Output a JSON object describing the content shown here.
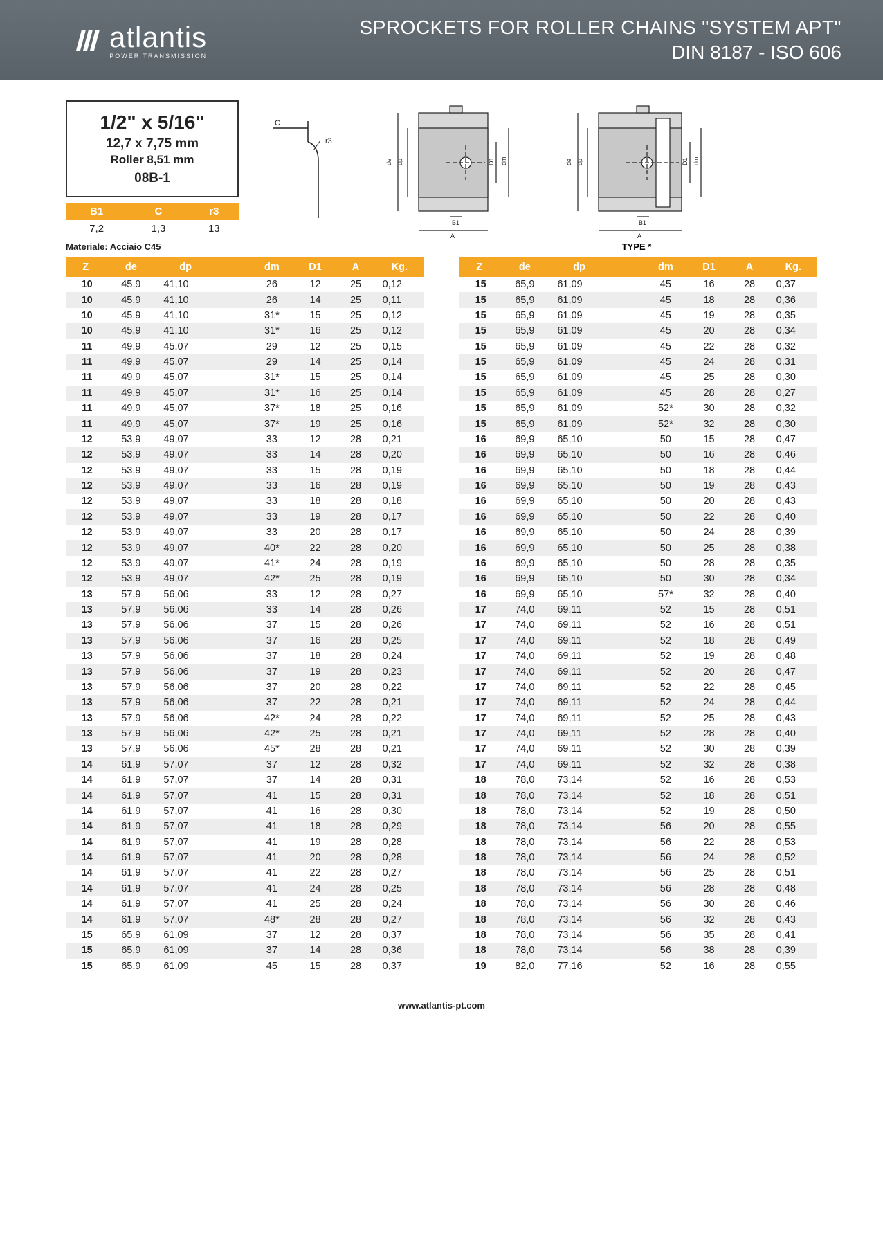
{
  "header": {
    "brand": "atlantis",
    "brand_sub": "POWER TRANSMISSION",
    "title1": "SPROCKETS FOR ROLLER CHAINS \"SYSTEM APT\"",
    "title2": "DIN 8187 - ISO 606"
  },
  "spec": {
    "main": "1/2\" x 5/16\"",
    "mm": "12,7 x 7,75 mm",
    "roller": "Roller 8,51 mm",
    "code": "08B-1"
  },
  "small_table": {
    "headers": [
      "B1",
      "C",
      "r3"
    ],
    "row": [
      "7,2",
      "1,3",
      "13"
    ]
  },
  "material": "Materiale: Acciaio C45",
  "type_label": "TYPE *",
  "footer": "www.atlantis-pt.com",
  "colors": {
    "header_bg": "#676f77",
    "accent": "#f5a623",
    "row_stripe": "#ededed",
    "text": "#222222"
  },
  "table_headers": [
    "Z",
    "de",
    "dp",
    "dm",
    "D1",
    "A",
    "Kg."
  ],
  "table_left": [
    [
      "10",
      "45,9",
      "41,10",
      "26",
      "12",
      "25",
      "0,12"
    ],
    [
      "10",
      "45,9",
      "41,10",
      "26",
      "14",
      "25",
      "0,11"
    ],
    [
      "10",
      "45,9",
      "41,10",
      "31*",
      "15",
      "25",
      "0,12"
    ],
    [
      "10",
      "45,9",
      "41,10",
      "31*",
      "16",
      "25",
      "0,12"
    ],
    [
      "11",
      "49,9",
      "45,07",
      "29",
      "12",
      "25",
      "0,15"
    ],
    [
      "11",
      "49,9",
      "45,07",
      "29",
      "14",
      "25",
      "0,14"
    ],
    [
      "11",
      "49,9",
      "45,07",
      "31*",
      "15",
      "25",
      "0,14"
    ],
    [
      "11",
      "49,9",
      "45,07",
      "31*",
      "16",
      "25",
      "0,14"
    ],
    [
      "11",
      "49,9",
      "45,07",
      "37*",
      "18",
      "25",
      "0,16"
    ],
    [
      "11",
      "49,9",
      "45,07",
      "37*",
      "19",
      "25",
      "0,16"
    ],
    [
      "12",
      "53,9",
      "49,07",
      "33",
      "12",
      "28",
      "0,21"
    ],
    [
      "12",
      "53,9",
      "49,07",
      "33",
      "14",
      "28",
      "0,20"
    ],
    [
      "12",
      "53,9",
      "49,07",
      "33",
      "15",
      "28",
      "0,19"
    ],
    [
      "12",
      "53,9",
      "49,07",
      "33",
      "16",
      "28",
      "0,19"
    ],
    [
      "12",
      "53,9",
      "49,07",
      "33",
      "18",
      "28",
      "0,18"
    ],
    [
      "12",
      "53,9",
      "49,07",
      "33",
      "19",
      "28",
      "0,17"
    ],
    [
      "12",
      "53,9",
      "49,07",
      "33",
      "20",
      "28",
      "0,17"
    ],
    [
      "12",
      "53,9",
      "49,07",
      "40*",
      "22",
      "28",
      "0,20"
    ],
    [
      "12",
      "53,9",
      "49,07",
      "41*",
      "24",
      "28",
      "0,19"
    ],
    [
      "12",
      "53,9",
      "49,07",
      "42*",
      "25",
      "28",
      "0,19"
    ],
    [
      "13",
      "57,9",
      "56,06",
      "33",
      "12",
      "28",
      "0,27"
    ],
    [
      "13",
      "57,9",
      "56,06",
      "33",
      "14",
      "28",
      "0,26"
    ],
    [
      "13",
      "57,9",
      "56,06",
      "37",
      "15",
      "28",
      "0,26"
    ],
    [
      "13",
      "57,9",
      "56,06",
      "37",
      "16",
      "28",
      "0,25"
    ],
    [
      "13",
      "57,9",
      "56,06",
      "37",
      "18",
      "28",
      "0,24"
    ],
    [
      "13",
      "57,9",
      "56,06",
      "37",
      "19",
      "28",
      "0,23"
    ],
    [
      "13",
      "57,9",
      "56,06",
      "37",
      "20",
      "28",
      "0,22"
    ],
    [
      "13",
      "57,9",
      "56,06",
      "37",
      "22",
      "28",
      "0,21"
    ],
    [
      "13",
      "57,9",
      "56,06",
      "42*",
      "24",
      "28",
      "0,22"
    ],
    [
      "13",
      "57,9",
      "56,06",
      "42*",
      "25",
      "28",
      "0,21"
    ],
    [
      "13",
      "57,9",
      "56,06",
      "45*",
      "28",
      "28",
      "0,21"
    ],
    [
      "14",
      "61,9",
      "57,07",
      "37",
      "12",
      "28",
      "0,32"
    ],
    [
      "14",
      "61,9",
      "57,07",
      "37",
      "14",
      "28",
      "0,31"
    ],
    [
      "14",
      "61,9",
      "57,07",
      "41",
      "15",
      "28",
      "0,31"
    ],
    [
      "14",
      "61,9",
      "57,07",
      "41",
      "16",
      "28",
      "0,30"
    ],
    [
      "14",
      "61,9",
      "57,07",
      "41",
      "18",
      "28",
      "0,29"
    ],
    [
      "14",
      "61,9",
      "57,07",
      "41",
      "19",
      "28",
      "0,28"
    ],
    [
      "14",
      "61,9",
      "57,07",
      "41",
      "20",
      "28",
      "0,28"
    ],
    [
      "14",
      "61,9",
      "57,07",
      "41",
      "22",
      "28",
      "0,27"
    ],
    [
      "14",
      "61,9",
      "57,07",
      "41",
      "24",
      "28",
      "0,25"
    ],
    [
      "14",
      "61,9",
      "57,07",
      "41",
      "25",
      "28",
      "0,24"
    ],
    [
      "14",
      "61,9",
      "57,07",
      "48*",
      "28",
      "28",
      "0,27"
    ],
    [
      "15",
      "65,9",
      "61,09",
      "37",
      "12",
      "28",
      "0,37"
    ],
    [
      "15",
      "65,9",
      "61,09",
      "37",
      "14",
      "28",
      "0,36"
    ],
    [
      "15",
      "65,9",
      "61,09",
      "45",
      "15",
      "28",
      "0,37"
    ]
  ],
  "table_right": [
    [
      "15",
      "65,9",
      "61,09",
      "45",
      "16",
      "28",
      "0,37"
    ],
    [
      "15",
      "65,9",
      "61,09",
      "45",
      "18",
      "28",
      "0,36"
    ],
    [
      "15",
      "65,9",
      "61,09",
      "45",
      "19",
      "28",
      "0,35"
    ],
    [
      "15",
      "65,9",
      "61,09",
      "45",
      "20",
      "28",
      "0,34"
    ],
    [
      "15",
      "65,9",
      "61,09",
      "45",
      "22",
      "28",
      "0,32"
    ],
    [
      "15",
      "65,9",
      "61,09",
      "45",
      "24",
      "28",
      "0,31"
    ],
    [
      "15",
      "65,9",
      "61,09",
      "45",
      "25",
      "28",
      "0,30"
    ],
    [
      "15",
      "65,9",
      "61,09",
      "45",
      "28",
      "28",
      "0,27"
    ],
    [
      "15",
      "65,9",
      "61,09",
      "52*",
      "30",
      "28",
      "0,32"
    ],
    [
      "15",
      "65,9",
      "61,09",
      "52*",
      "32",
      "28",
      "0,30"
    ],
    [
      "16",
      "69,9",
      "65,10",
      "50",
      "15",
      "28",
      "0,47"
    ],
    [
      "16",
      "69,9",
      "65,10",
      "50",
      "16",
      "28",
      "0,46"
    ],
    [
      "16",
      "69,9",
      "65,10",
      "50",
      "18",
      "28",
      "0,44"
    ],
    [
      "16",
      "69,9",
      "65,10",
      "50",
      "19",
      "28",
      "0,43"
    ],
    [
      "16",
      "69,9",
      "65,10",
      "50",
      "20",
      "28",
      "0,43"
    ],
    [
      "16",
      "69,9",
      "65,10",
      "50",
      "22",
      "28",
      "0,40"
    ],
    [
      "16",
      "69,9",
      "65,10",
      "50",
      "24",
      "28",
      "0,39"
    ],
    [
      "16",
      "69,9",
      "65,10",
      "50",
      "25",
      "28",
      "0,38"
    ],
    [
      "16",
      "69,9",
      "65,10",
      "50",
      "28",
      "28",
      "0,35"
    ],
    [
      "16",
      "69,9",
      "65,10",
      "50",
      "30",
      "28",
      "0,34"
    ],
    [
      "16",
      "69,9",
      "65,10",
      "57*",
      "32",
      "28",
      "0,40"
    ],
    [
      "17",
      "74,0",
      "69,11",
      "52",
      "15",
      "28",
      "0,51"
    ],
    [
      "17",
      "74,0",
      "69,11",
      "52",
      "16",
      "28",
      "0,51"
    ],
    [
      "17",
      "74,0",
      "69,11",
      "52",
      "18",
      "28",
      "0,49"
    ],
    [
      "17",
      "74,0",
      "69,11",
      "52",
      "19",
      "28",
      "0,48"
    ],
    [
      "17",
      "74,0",
      "69,11",
      "52",
      "20",
      "28",
      "0,47"
    ],
    [
      "17",
      "74,0",
      "69,11",
      "52",
      "22",
      "28",
      "0,45"
    ],
    [
      "17",
      "74,0",
      "69,11",
      "52",
      "24",
      "28",
      "0,44"
    ],
    [
      "17",
      "74,0",
      "69,11",
      "52",
      "25",
      "28",
      "0,43"
    ],
    [
      "17",
      "74,0",
      "69,11",
      "52",
      "28",
      "28",
      "0,40"
    ],
    [
      "17",
      "74,0",
      "69,11",
      "52",
      "30",
      "28",
      "0,39"
    ],
    [
      "17",
      "74,0",
      "69,11",
      "52",
      "32",
      "28",
      "0,38"
    ],
    [
      "18",
      "78,0",
      "73,14",
      "52",
      "16",
      "28",
      "0,53"
    ],
    [
      "18",
      "78,0",
      "73,14",
      "52",
      "18",
      "28",
      "0,51"
    ],
    [
      "18",
      "78,0",
      "73,14",
      "52",
      "19",
      "28",
      "0,50"
    ],
    [
      "18",
      "78,0",
      "73,14",
      "56",
      "20",
      "28",
      "0,55"
    ],
    [
      "18",
      "78,0",
      "73,14",
      "56",
      "22",
      "28",
      "0,53"
    ],
    [
      "18",
      "78,0",
      "73,14",
      "56",
      "24",
      "28",
      "0,52"
    ],
    [
      "18",
      "78,0",
      "73,14",
      "56",
      "25",
      "28",
      "0,51"
    ],
    [
      "18",
      "78,0",
      "73,14",
      "56",
      "28",
      "28",
      "0,48"
    ],
    [
      "18",
      "78,0",
      "73,14",
      "56",
      "30",
      "28",
      "0,46"
    ],
    [
      "18",
      "78,0",
      "73,14",
      "56",
      "32",
      "28",
      "0,43"
    ],
    [
      "18",
      "78,0",
      "73,14",
      "56",
      "35",
      "28",
      "0,41"
    ],
    [
      "18",
      "78,0",
      "73,14",
      "56",
      "38",
      "28",
      "0,39"
    ],
    [
      "19",
      "82,0",
      "77,16",
      "52",
      "16",
      "28",
      "0,55"
    ]
  ]
}
